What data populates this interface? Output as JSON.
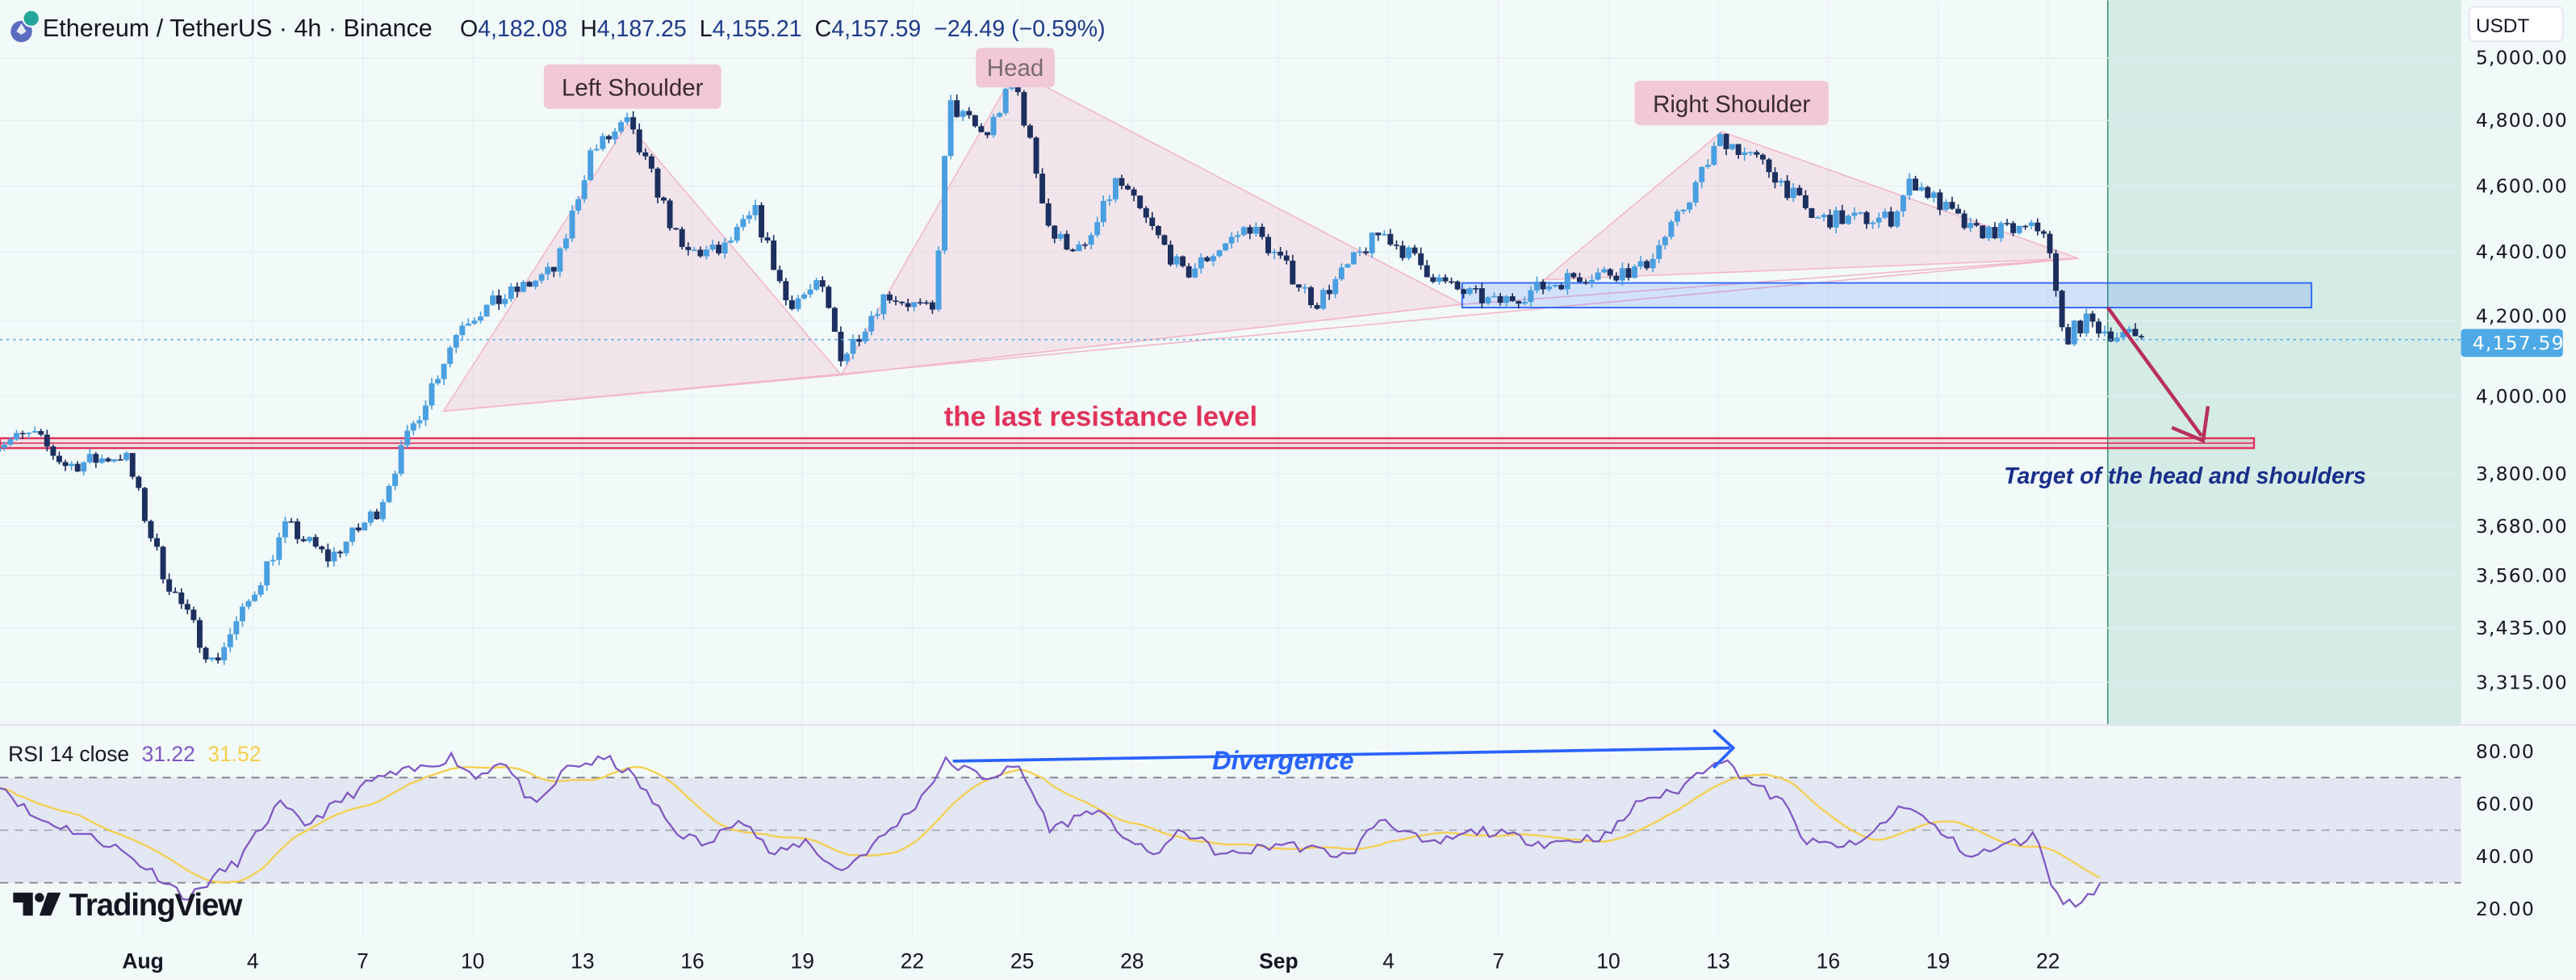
{
  "header": {
    "symbol": "Ethereum / TetherUS · 4h · Binance",
    "open_label": "O",
    "open": "4,182.08",
    "high_label": "H",
    "high": "4,187.25",
    "low_label": "L",
    "low": "4,155.21",
    "close_label": "C",
    "close": "4,157.59",
    "change": "−24.49 (−0.59%)"
  },
  "price_axis": {
    "currency": "USDT",
    "ticks": [
      "5,000.00",
      "4,800.00",
      "4,600.00",
      "4,400.00",
      "4,200.00",
      "4,000.00",
      "3,800.00",
      "3,680.00",
      "3,560.00",
      "3,435.00",
      "3,315.00"
    ],
    "current_price": "4,157.59"
  },
  "rsi": {
    "label": "RSI 14 close",
    "value": "31.22",
    "ma_value": "31.52",
    "ticks": [
      "80.00",
      "60.00",
      "40.00",
      "20.00"
    ]
  },
  "time_axis": [
    "Aug",
    "4",
    "7",
    "10",
    "13",
    "16",
    "19",
    "22",
    "25",
    "28",
    "Sep",
    "4",
    "7",
    "10",
    "13",
    "16",
    "19",
    "22"
  ],
  "annotations": {
    "left_shoulder": "Left Shoulder",
    "head": "Head",
    "right_shoulder": "Right Shoulder",
    "resistance": "the last resistance level",
    "target": "Target of the head and shoulders",
    "divergence": "Divergence"
  },
  "logo": "TradingView",
  "colors": {
    "bull": "#4a9fe0",
    "bear": "#1c2f5e",
    "rsi": "#7e57c2",
    "rsi_ma": "#f5cf4a",
    "resistance": "#e0325a",
    "target_text": "#1a2f8a",
    "divergence": "#2962ff",
    "current_price": "#4ea9e6"
  },
  "chart_data": {
    "type": "candlestick",
    "symbol": "ETHUSDT",
    "interval": "4h",
    "price_scale": "log",
    "ylim": [
      3250,
      5050
    ],
    "close_path": [
      [
        "Jul 28 02:00",
        3880
      ],
      [
        "Jul 29 00:00",
        3900
      ],
      [
        "Jul 29 22:00",
        3820
      ],
      [
        "Jul 31 12:00",
        3850
      ],
      [
        "Aug 1 14:00",
        3560
      ],
      [
        "Aug 2 22:00",
        3355
      ],
      [
        "Aug 3 19:00",
        3480
      ],
      [
        "Aug 4 22:00",
        3680
      ],
      [
        "Aug 6 02:00",
        3600
      ],
      [
        "Aug 7 10:00",
        3720
      ],
      [
        "Aug 8 12:00",
        3950
      ],
      [
        "Aug 9 17:00",
        4200
      ],
      [
        "Aug 10 14:00",
        4250
      ],
      [
        "Aug 12 07:00",
        4350
      ],
      [
        "Aug 13 05:00",
        4700
      ],
      [
        "Aug 14 05:00",
        4790
      ],
      [
        "Aug 15 00:00",
        4600
      ],
      [
        "Aug 15 17:00",
        4400
      ],
      [
        "Aug 16 19:00",
        4400
      ],
      [
        "Aug 17 17:00",
        4520
      ],
      [
        "Aug 18 14:00",
        4250
      ],
      [
        "Aug 19 12:00",
        4300
      ],
      [
        "Aug 20 02:00",
        4100
      ],
      [
        "Aug 21 07:00",
        4280
      ],
      [
        "Aug 22 14:00",
        4220
      ],
      [
        "Aug 23 00:00",
        4850
      ],
      [
        "Aug 24 00:00",
        4750
      ],
      [
        "Aug 24 19:00",
        4930
      ],
      [
        "Aug 25 19:00",
        4450
      ],
      [
        "Aug 26 17:00",
        4400
      ],
      [
        "Aug 27 14:00",
        4620
      ],
      [
        "Aug 29 10:00",
        4330
      ],
      [
        "Aug 31 05:00",
        4480
      ],
      [
        "Sep 2 00:00",
        4250
      ],
      [
        "Sep 3 19:00",
        4460
      ],
      [
        "Sep 5 14:00",
        4300
      ],
      [
        "Sep 6 22:00",
        4250
      ],
      [
        "Sep 9 02:00",
        4330
      ],
      [
        "Sep 10 22:00",
        4350
      ],
      [
        "Sep 11 19:00",
        4480
      ],
      [
        "Sep 13 02:00",
        4750
      ],
      [
        "Sep 14 12:00",
        4640
      ],
      [
        "Sep 15 14:00",
        4500
      ],
      [
        "Sep 17 17:00",
        4500
      ],
      [
        "Sep 18 07:00",
        4620
      ],
      [
        "Sep 19 22:00",
        4460
      ],
      [
        "Sep 21 22:00",
        4470
      ],
      [
        "Sep 22 10:00",
        4150
      ],
      [
        "Sep 23 00:00",
        4200
      ],
      [
        "Sep 23 22:00",
        4160
      ],
      [
        "Sep 24 14:00",
        4157.59
      ]
    ],
    "resistance_zone": [
      3885,
      3905
    ],
    "neckline_zone": [
      4250,
      4300
    ],
    "rsi_levels": [
      70,
      50,
      30
    ],
    "rsi_ylim": [
      15,
      85
    ],
    "rsi_path": [
      [
        "Jul 28 02:00",
        68
      ],
      [
        "Jul 29 00:00",
        55
      ],
      [
        "Jul 30 02:00",
        50
      ],
      [
        "Jul 31 05:00",
        44
      ],
      [
        "Aug 1 09:00",
        33
      ],
      [
        "Aug 2 06:00",
        24
      ],
      [
        "Aug 2 22:00",
        32
      ],
      [
        "Aug 3 14:00",
        38
      ],
      [
        "Aug 4 17:00",
        60
      ],
      [
        "Aug 5 10:00",
        52
      ],
      [
        "Aug 6 12:00",
        62
      ],
      [
        "Aug 7 10:00",
        70
      ],
      [
        "Aug 8 12:00",
        73
      ],
      [
        "Aug 9 10:00",
        78
      ],
      [
        "Aug 10 02:00",
        70
      ],
      [
        "Aug 10 19:00",
        77
      ],
      [
        "Aug 11 17:00",
        58
      ],
      [
        "Aug 12 14:00",
        74
      ],
      [
        "Aug 13 17:00",
        77
      ],
      [
        "Aug 14 10:00",
        70
      ],
      [
        "Aug 15 12:00",
        50
      ],
      [
        "Aug 16 10:00",
        44
      ],
      [
        "Aug 17 07:00",
        56
      ],
      [
        "Aug 18 05:00",
        40
      ],
      [
        "Aug 19 02:00",
        46
      ],
      [
        "Aug 20 00:00",
        34
      ],
      [
        "Aug 20 22:00",
        44
      ],
      [
        "Aug 22 00:00",
        58
      ],
      [
        "Aug 22 22:00",
        76
      ],
      [
        "Aug 24 00:00",
        70
      ],
      [
        "Aug 24 22:00",
        74
      ],
      [
        "Aug 25 19:00",
        50
      ],
      [
        "Aug 26 22:00",
        58
      ],
      [
        "Aug 28 12:00",
        40
      ],
      [
        "Aug 29 10:00",
        50
      ],
      [
        "Aug 30 12:00",
        40
      ],
      [
        "Sep 1 02:00",
        45
      ],
      [
        "Sep 2 22:00",
        40
      ],
      [
        "Sep 3 19:00",
        55
      ],
      [
        "Sep 5 02:00",
        44
      ],
      [
        "Sep 6 12:00",
        50
      ],
      [
        "Sep 8 07:00",
        45
      ],
      [
        "Sep 10 00:00",
        48
      ],
      [
        "Sep 10 22:00",
        62
      ],
      [
        "Sep 11 19:00",
        64
      ],
      [
        "Sep 13 00:00",
        78
      ],
      [
        "Sep 13 22:00",
        68
      ],
      [
        "Sep 14 19:00",
        60
      ],
      [
        "Sep 15 10:00",
        45
      ],
      [
        "Sep 16 19:00",
        44
      ],
      [
        "Sep 18 02:00",
        60
      ],
      [
        "Sep 19 00:00",
        50
      ],
      [
        "Sep 19 22:00",
        40
      ],
      [
        "Sep 21 17:00",
        48
      ],
      [
        "Sep 22 05:00",
        25
      ],
      [
        "Sep 22 19:00",
        21
      ],
      [
        "Sep 23 12:00",
        31
      ]
    ]
  }
}
